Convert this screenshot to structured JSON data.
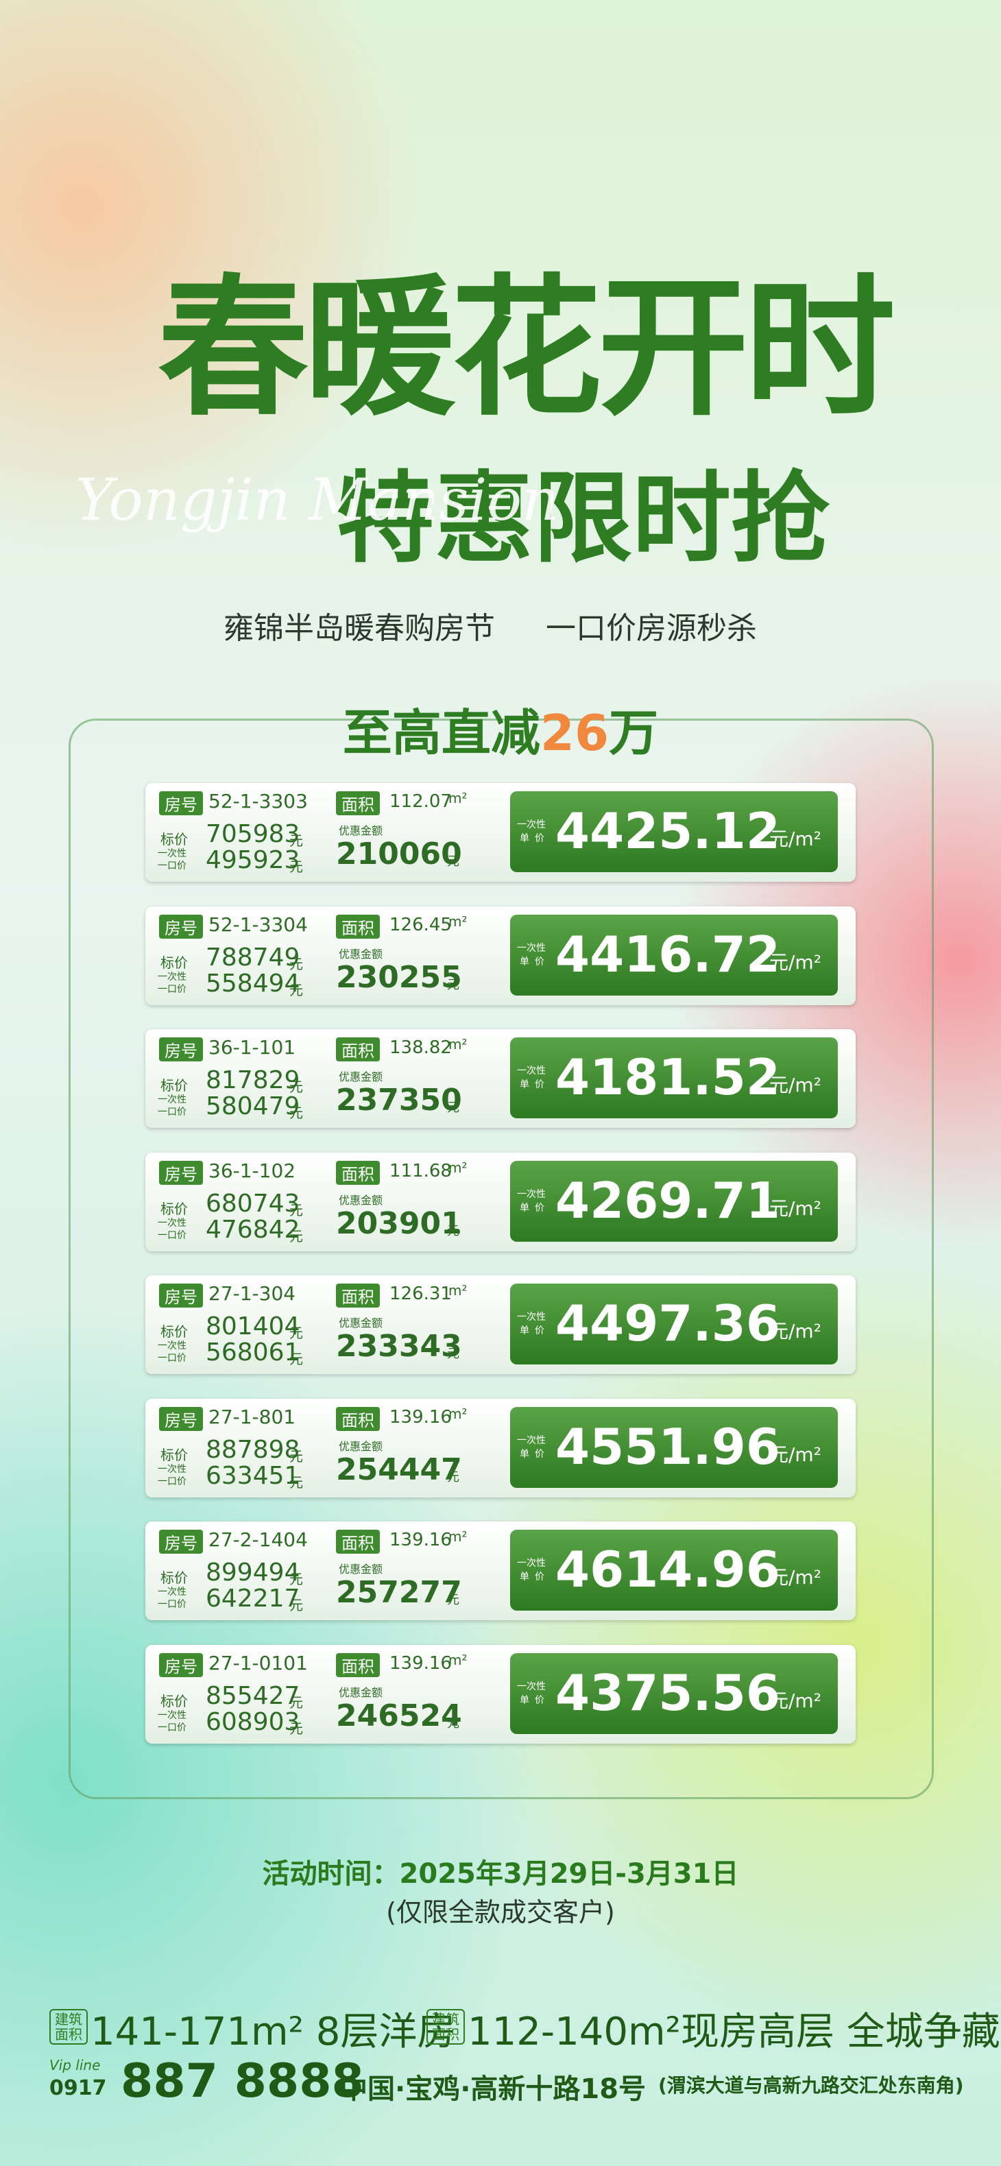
{
  "header": {
    "title_line1": "春暖花开时",
    "title_line2": "特惠限时抢",
    "script": "Yongjin Mansion",
    "subtitle_a": "雍锦半岛暖春购房节",
    "subtitle_b": "一口价房源秒杀",
    "headline_a": "至高直减",
    "headline_num": "26",
    "headline_b": "万"
  },
  "labels": {
    "room": "房号",
    "area": "面积",
    "list": "标价",
    "onetime_a": "一次性",
    "onetime_b": "一口价",
    "discount": "优惠金额",
    "yuan": "元",
    "unit_a": "一次性",
    "unit_b": "单价",
    "unit": "元/m²",
    "sqm": "m²"
  },
  "listings": [
    {
      "room": "52-1-3303",
      "area": 112.07,
      "list_price": 705983,
      "onetime_price": 495923,
      "discount": 210060,
      "unit_price": 4425.12
    },
    {
      "room": "52-1-3304",
      "area": 126.45,
      "list_price": 788749,
      "onetime_price": 558494,
      "discount": 230255,
      "unit_price": 4416.72
    },
    {
      "room": "36-1-101",
      "area": 138.82,
      "list_price": 817829,
      "onetime_price": 580479,
      "discount": 237350,
      "unit_price": 4181.52
    },
    {
      "room": "36-1-102",
      "area": 111.68,
      "list_price": 680743,
      "onetime_price": 476842,
      "discount": 203901,
      "unit_price": 4269.71
    },
    {
      "room": "27-1-304",
      "area": 126.31,
      "list_price": 801404,
      "onetime_price": 568061,
      "discount": 233343,
      "unit_price": 4497.36
    },
    {
      "room": "27-1-801",
      "area": 139.16,
      "list_price": 887898,
      "onetime_price": 633451,
      "discount": 254447,
      "unit_price": 4551.96
    },
    {
      "room": "27-2-1404",
      "area": 139.16,
      "list_price": 899494,
      "onetime_price": 642217,
      "discount": 257277,
      "unit_price": 4614.96
    },
    {
      "room": "27-1-0101",
      "area": 139.16,
      "list_price": 855427,
      "onetime_price": 608903,
      "discount": 246524,
      "unit_price": 4375.56
    }
  ],
  "footer": {
    "event_time": "活动时间：2025年3月29日-3月31日",
    "note": "(仅限全款成交客户)",
    "badge_a": "建筑",
    "badge_b": "面积",
    "product_1": "141-171m² 8层洋房",
    "product_2": "112-140m²现房高层 全城争藏",
    "vip": "Vip line",
    "area_code": "0917",
    "phone": "887 8888",
    "address": "中国·宝鸡·高新十路18号",
    "address_note": "(渭滨大道与高新九路交汇处东南角)"
  }
}
